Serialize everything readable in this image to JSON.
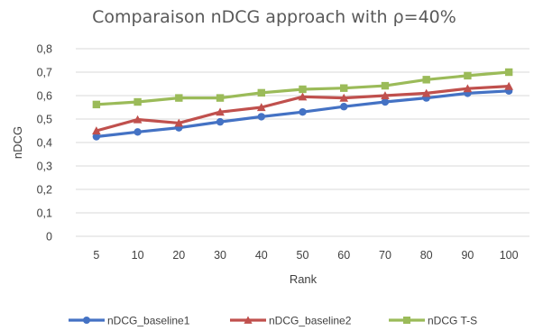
{
  "chart_data": {
    "type": "line",
    "title": "Comparaison nDCG approach    with ρ=40%",
    "xlabel": "Rank",
    "ylabel": "nDCG",
    "categories": [
      "5",
      "10",
      "20",
      "30",
      "40",
      "50",
      "60",
      "70",
      "80",
      "90",
      "100"
    ],
    "ylim": [
      0,
      0.8
    ],
    "yticks": [
      "0",
      "0,1",
      "0,2",
      "0,3",
      "0,4",
      "0,5",
      "0,6",
      "0,7",
      "0,8"
    ],
    "grid": true,
    "legend_position": "bottom",
    "series": [
      {
        "name": "nDCG_baseline1",
        "color": "#4472c4",
        "marker": "circle",
        "values": [
          0.425,
          0.445,
          0.463,
          0.488,
          0.51,
          0.53,
          0.553,
          0.573,
          0.59,
          0.61,
          0.62
        ]
      },
      {
        "name": "nDCG_baseline2",
        "color": "#c0504d",
        "marker": "triangle",
        "values": [
          0.45,
          0.498,
          0.483,
          0.53,
          0.55,
          0.595,
          0.59,
          0.6,
          0.61,
          0.63,
          0.64
        ]
      },
      {
        "name": "nDCG T-S",
        "color": "#9bbb59",
        "marker": "square",
        "values": [
          0.562,
          0.573,
          0.59,
          0.59,
          0.612,
          0.627,
          0.632,
          0.642,
          0.668,
          0.685,
          0.7
        ]
      }
    ]
  }
}
